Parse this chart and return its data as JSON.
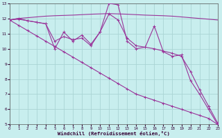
{
  "xlabel": "Windchill (Refroidissement éolien,°C)",
  "background_color": "#c8eeee",
  "grid_color": "#aad4d4",
  "line_color": "#993399",
  "xlim": [
    0,
    23
  ],
  "ylim": [
    5,
    13
  ],
  "yticks": [
    5,
    6,
    7,
    8,
    9,
    10,
    11,
    12,
    13
  ],
  "xticks": [
    0,
    1,
    2,
    3,
    4,
    5,
    6,
    7,
    8,
    9,
    10,
    11,
    12,
    13,
    14,
    15,
    16,
    17,
    18,
    19,
    20,
    21,
    22,
    23
  ],
  "smooth_x": [
    0,
    1,
    2,
    3,
    4,
    5,
    6,
    7,
    8,
    9,
    10,
    11,
    12,
    13,
    14,
    15,
    16,
    17,
    18,
    19,
    20,
    21,
    22,
    23
  ],
  "smooth_y": [
    11.9,
    12.0,
    12.05,
    12.1,
    12.15,
    12.18,
    12.2,
    12.22,
    12.25,
    12.28,
    12.3,
    12.32,
    12.3,
    12.28,
    12.25,
    12.22,
    12.2,
    12.18,
    12.15,
    12.1,
    12.05,
    12.0,
    11.95,
    11.9
  ],
  "jagged1_x": [
    0,
    1,
    2,
    3,
    4,
    5,
    6,
    7,
    8,
    9,
    10,
    11,
    12,
    13,
    14,
    15,
    16,
    17,
    18,
    19,
    20,
    21,
    22,
    23
  ],
  "jagged1_y": [
    11.9,
    12.0,
    11.85,
    11.75,
    11.65,
    10.0,
    11.1,
    10.5,
    10.9,
    10.3,
    11.1,
    13.0,
    12.9,
    10.5,
    10.0,
    10.1,
    11.5,
    9.8,
    9.5,
    9.6,
    7.9,
    7.0,
    6.0,
    5.0
  ],
  "jagged2_x": [
    0,
    1,
    2,
    3,
    4,
    5,
    6,
    7,
    8,
    9,
    10,
    11,
    12,
    13,
    14,
    15,
    16,
    17,
    18,
    19,
    20,
    21,
    22,
    23
  ],
  "jagged2_y": [
    11.9,
    11.95,
    11.85,
    11.75,
    11.65,
    10.5,
    10.8,
    10.6,
    10.7,
    10.2,
    11.1,
    12.3,
    11.9,
    10.7,
    10.2,
    10.1,
    10.0,
    9.85,
    9.7,
    9.5,
    8.5,
    7.3,
    6.2,
    5.1
  ],
  "diag_x": [
    0,
    1,
    2,
    3,
    4,
    5,
    6,
    7,
    8,
    9,
    10,
    11,
    12,
    13,
    14,
    15,
    16,
    17,
    18,
    19,
    20,
    21,
    22,
    23
  ],
  "diag_y": [
    11.9,
    11.55,
    11.2,
    10.85,
    10.5,
    10.15,
    9.8,
    9.45,
    9.1,
    8.75,
    8.4,
    8.05,
    7.7,
    7.35,
    7.0,
    6.8,
    6.6,
    6.4,
    6.2,
    6.0,
    5.8,
    5.6,
    5.4,
    5.0
  ]
}
